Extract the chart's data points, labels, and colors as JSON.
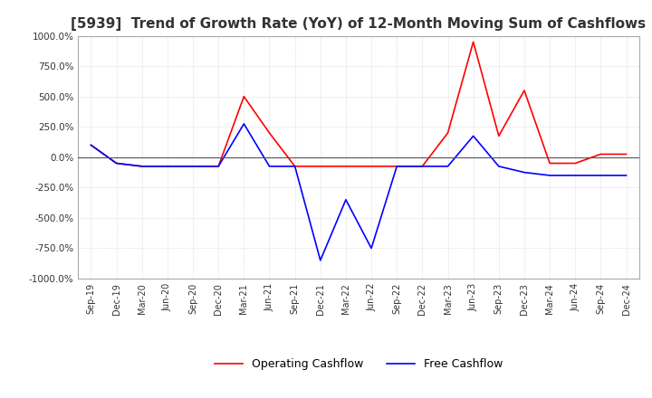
{
  "title": "[5939]  Trend of Growth Rate (YoY) of 12-Month Moving Sum of Cashflows",
  "ylim": [
    -1000,
    1000
  ],
  "yticks": [
    1000,
    750,
    500,
    250,
    0,
    -250,
    -500,
    -750,
    -1000
  ],
  "ytick_labels": [
    "1000.0%",
    "750.0%",
    "500.0%",
    "250.0%",
    "0.0%",
    "-250.0%",
    "-500.0%",
    "-750.0%",
    "-1000.0%"
  ],
  "x_labels": [
    "Sep-19",
    "Dec-19",
    "Mar-20",
    "Jun-20",
    "Sep-20",
    "Dec-20",
    "Mar-21",
    "Jun-21",
    "Sep-21",
    "Dec-21",
    "Mar-22",
    "Jun-22",
    "Sep-22",
    "Dec-22",
    "Mar-23",
    "Jun-23",
    "Sep-23",
    "Dec-23",
    "Mar-24",
    "Jun-24",
    "Sep-24",
    "Dec-24"
  ],
  "operating_cashflow": [
    100,
    -50,
    -75,
    -75,
    -75,
    -75,
    500,
    200,
    -75,
    -75,
    -75,
    -75,
    -75,
    -75,
    200,
    950,
    175,
    550,
    -50,
    -50,
    25,
    25
  ],
  "free_cashflow": [
    100,
    -50,
    -75,
    -75,
    -75,
    -75,
    275,
    -75,
    -75,
    -850,
    -350,
    -750,
    -75,
    -75,
    -75,
    175,
    -75,
    -125,
    -150,
    -150,
    -150,
    -150
  ],
  "op_color": "#ff0000",
  "free_color": "#0000ff",
  "grid_color": "#c8c8c8",
  "background_color": "#ffffff",
  "title_fontsize": 11,
  "op_label": "Operating Cashflow",
  "free_label": "Free Cashflow"
}
